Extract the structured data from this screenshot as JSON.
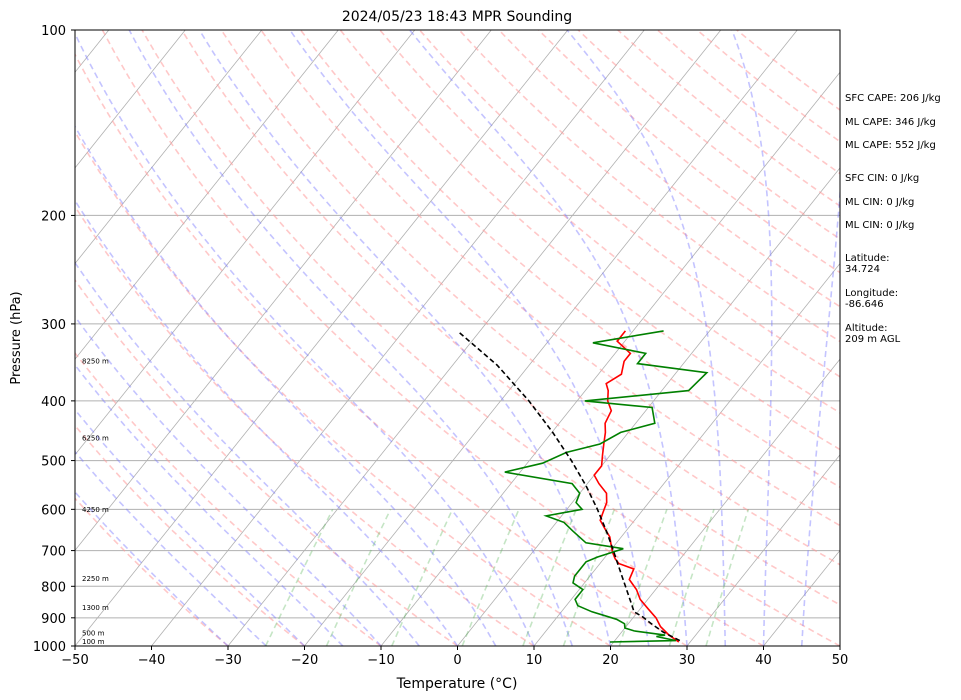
{
  "chart_data": {
    "type": "line",
    "title": "2024/05/23 18:43 MPR Sounding",
    "xlabel": "Temperature (°C)",
    "ylabel": "Pressure (hPa)",
    "xlim": [
      -50,
      50
    ],
    "ylim": [
      1000,
      100
    ],
    "y_scale": "log",
    "skew": "skew-T log-P",
    "x_ticks": [
      -50,
      -40,
      -30,
      -20,
      -10,
      0,
      10,
      20,
      30,
      40,
      50
    ],
    "y_ticks": [
      1000,
      900,
      800,
      700,
      600,
      500,
      400,
      300,
      200,
      100
    ],
    "height_labels": [
      {
        "label": "100 m",
        "p": 985
      },
      {
        "label": "500 m",
        "p": 955
      },
      {
        "label": "1300 m",
        "p": 868
      },
      {
        "label": "2250 m",
        "p": 778
      },
      {
        "label": "4250 m",
        "p": 602
      },
      {
        "label": "6250 m",
        "p": 460
      },
      {
        "label": "8250 m",
        "p": 345
      }
    ],
    "series": [
      {
        "color": "#ff0000",
        "style": "solid",
        "points": [
          {
            "p": 985,
            "t": 28.5
          },
          {
            "p": 960,
            "t": 26.5
          },
          {
            "p": 930,
            "t": 24.5
          },
          {
            "p": 900,
            "t": 23.0
          },
          {
            "p": 870,
            "t": 21.0
          },
          {
            "p": 840,
            "t": 19.0
          },
          {
            "p": 810,
            "t": 17.5
          },
          {
            "p": 780,
            "t": 15.5
          },
          {
            "p": 750,
            "t": 15.0
          },
          {
            "p": 735,
            "t": 12.5
          },
          {
            "p": 722,
            "t": 11.5
          },
          {
            "p": 705,
            "t": 10.5
          },
          {
            "p": 685,
            "t": 9.5
          },
          {
            "p": 665,
            "t": 8.5
          },
          {
            "p": 645,
            "t": 7.0
          },
          {
            "p": 625,
            "t": 5.5
          },
          {
            "p": 605,
            "t": 5.0
          },
          {
            "p": 585,
            "t": 4.5
          },
          {
            "p": 565,
            "t": 3.5
          },
          {
            "p": 545,
            "t": 1.5
          },
          {
            "p": 528,
            "t": 0.0
          },
          {
            "p": 510,
            "t": 0.0
          },
          {
            "p": 490,
            "t": -1.0
          },
          {
            "p": 470,
            "t": -2.0
          },
          {
            "p": 450,
            "t": -3.0
          },
          {
            "p": 435,
            "t": -4.0
          },
          {
            "p": 415,
            "t": -4.5
          },
          {
            "p": 400,
            "t": -6.0
          },
          {
            "p": 385,
            "t": -7.0
          },
          {
            "p": 375,
            "t": -8.0
          },
          {
            "p": 362,
            "t": -7.0
          },
          {
            "p": 345,
            "t": -8.0
          },
          {
            "p": 335,
            "t": -8.0
          },
          {
            "p": 320,
            "t": -11.0
          },
          {
            "p": 308,
            "t": -11.0
          }
        ]
      },
      {
        "color": "#008000",
        "style": "solid",
        "points": [
          {
            "p": 985,
            "t": 19.5
          },
          {
            "p": 980,
            "t": 28.0
          },
          {
            "p": 965,
            "t": 25.0
          },
          {
            "p": 960,
            "t": 26.0
          },
          {
            "p": 945,
            "t": 21.5
          },
          {
            "p": 935,
            "t": 20.0
          },
          {
            "p": 920,
            "t": 19.5
          },
          {
            "p": 905,
            "t": 18.0
          },
          {
            "p": 880,
            "t": 14.0
          },
          {
            "p": 860,
            "t": 11.5
          },
          {
            "p": 840,
            "t": 10.5
          },
          {
            "p": 810,
            "t": 10.5
          },
          {
            "p": 790,
            "t": 8.5
          },
          {
            "p": 770,
            "t": 8.0
          },
          {
            "p": 750,
            "t": 8.0
          },
          {
            "p": 730,
            "t": 8.0
          },
          {
            "p": 717,
            "t": 9.0
          },
          {
            "p": 695,
            "t": 11.5
          },
          {
            "p": 680,
            "t": 6.0
          },
          {
            "p": 650,
            "t": 3.0
          },
          {
            "p": 630,
            "t": 1.0
          },
          {
            "p": 615,
            "t": -2.0
          },
          {
            "p": 600,
            "t": 2.0
          },
          {
            "p": 585,
            "t": 0.5
          },
          {
            "p": 565,
            "t": 0.0
          },
          {
            "p": 545,
            "t": -2.0
          },
          {
            "p": 522,
            "t": -12.0
          },
          {
            "p": 505,
            "t": -8.0
          },
          {
            "p": 485,
            "t": -6.0
          },
          {
            "p": 470,
            "t": -2.5
          },
          {
            "p": 450,
            "t": -1.0
          },
          {
            "p": 435,
            "t": 2.5
          },
          {
            "p": 410,
            "t": 0.5
          },
          {
            "p": 400,
            "t": -9.0
          },
          {
            "p": 385,
            "t": 3.5
          },
          {
            "p": 360,
            "t": 4.0
          },
          {
            "p": 348,
            "t": -6.0
          },
          {
            "p": 335,
            "t": -6.0
          },
          {
            "p": 322,
            "t": -14.0
          },
          {
            "p": 308,
            "t": -6.0
          }
        ]
      },
      {
        "color": "#000000",
        "style": "dashed",
        "points": [
          {
            "p": 980,
            "t": 28.5
          },
          {
            "p": 950,
            "t": 25.5
          },
          {
            "p": 920,
            "t": 23.0
          },
          {
            "p": 895,
            "t": 21.0
          },
          {
            "p": 880,
            "t": 19.5
          },
          {
            "p": 860,
            "t": 18.6
          },
          {
            "p": 820,
            "t": 16.7
          },
          {
            "p": 780,
            "t": 14.7
          },
          {
            "p": 740,
            "t": 12.6
          },
          {
            "p": 700,
            "t": 10.4
          },
          {
            "p": 650,
            "t": 7.4
          },
          {
            "p": 600,
            "t": 4.0
          },
          {
            "p": 550,
            "t": 0.1
          },
          {
            "p": 500,
            "t": -4.5
          },
          {
            "p": 450,
            "t": -9.9
          },
          {
            "p": 400,
            "t": -16.3
          },
          {
            "p": 350,
            "t": -24.2
          },
          {
            "p": 310,
            "t": -32.5
          }
        ]
      }
    ],
    "annotations": [
      "SFC CAPE: 206 J/kg",
      "ML CAPE: 346 J/kg",
      "ML CAPE: 552 J/kg",
      "SFC CIN: 0 J/kg",
      "ML CIN: 0 J/kg",
      "ML CIN: 0 J/kg",
      "Latitude:\n34.724",
      "Longitude:\n-86.646",
      "Altitude:\n209 m AGL"
    ],
    "grid": true
  }
}
